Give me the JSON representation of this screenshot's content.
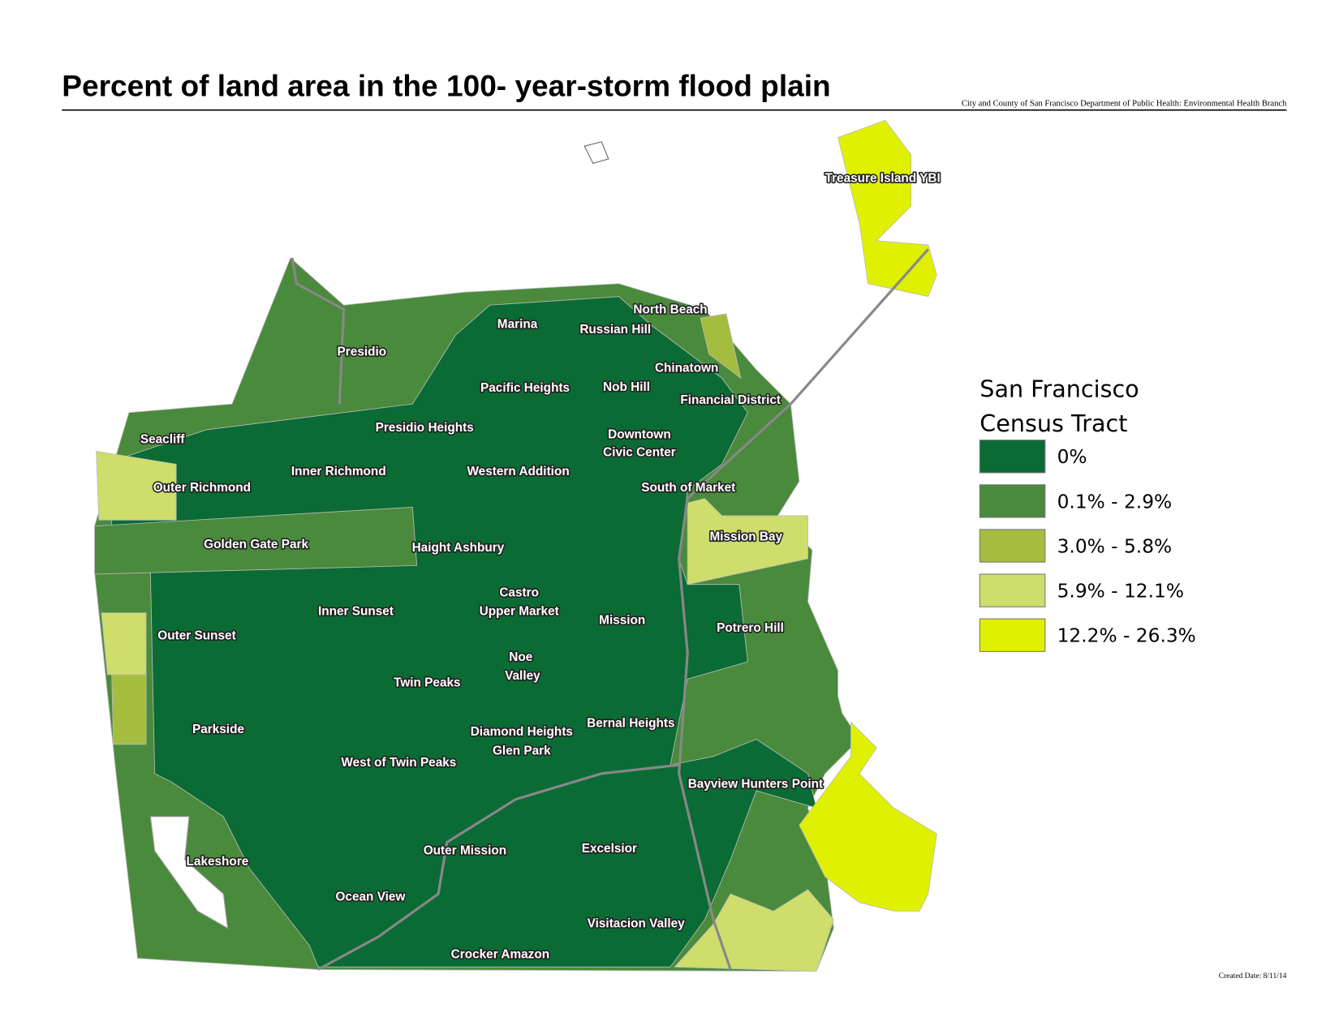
{
  "header": {
    "title": "Percent of land area in the 100- year-storm flood plain",
    "credit": "City and County of San Francisco Department of Public Health: Environmental Health Branch"
  },
  "labels": [
    "Presidio",
    "Marina",
    "North Beach",
    "Russian Hill",
    "Chinatown",
    "Pacific Heights",
    "Nob Hill",
    "Financial District",
    "Presidio Heights",
    "Seacliff",
    "Downtown",
    "Civic Center",
    "Inner Richmond",
    "Western Addition",
    "Outer Richmond",
    "South of Market",
    "Golden Gate Park",
    "Haight Ashbury",
    "Mission Bay",
    "Castro",
    "Upper Market",
    "Inner Sunset",
    "Mission",
    "Potrero Hill",
    "Outer Sunset",
    "Noe",
    "Valley",
    "Twin Peaks",
    "Parkside",
    "Bernal Heights",
    "Diamond Heights",
    "Glen Park",
    "West of Twin Peaks",
    "Bayview Hunters Point",
    "Treasure Island YBI",
    "Lakeshore",
    "Excelsior",
    "Outer Mission",
    "Ocean View",
    "Visitacion Valley",
    "Crocker Amazon"
  ],
  "legend": {
    "title_lines": [
      "San Francisco",
      "Census Tract"
    ],
    "items": [
      {
        "label": "0%",
        "color": "#0b6b35"
      },
      {
        "label": "0.1% - 2.9%",
        "color": "#4a8a3c"
      },
      {
        "label": "3.0% - 5.8%",
        "color": "#a4bd3e"
      },
      {
        "label": "5.9% - 12.1%",
        "color": "#cfdd6b"
      },
      {
        "label": "12.2% - 26.3%",
        "color": "#dff000"
      }
    ]
  },
  "footer": {
    "created": "Created Date: 8/11/14"
  }
}
